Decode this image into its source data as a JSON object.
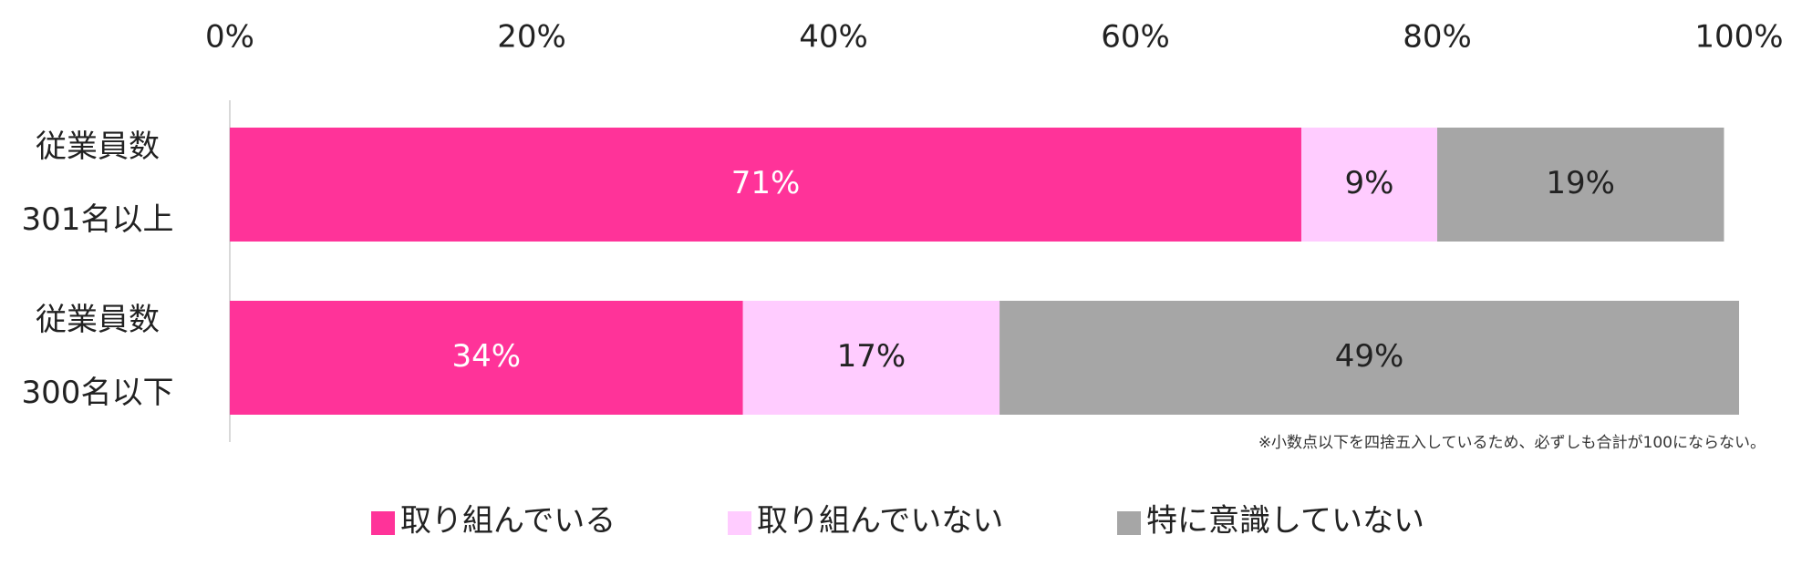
{
  "chart_data": {
    "type": "stacked_barh",
    "categories": [
      [
        "従業員数",
        "301名以上"
      ],
      [
        "従業員数",
        "300名以下"
      ]
    ],
    "series": [
      {
        "name": "取り組んでいる",
        "color": "#ff3399",
        "values": [
          71,
          34
        ],
        "value_labels": [
          "71%",
          "34%"
        ]
      },
      {
        "name": "取り組んでいない",
        "color": "#ffccff",
        "values": [
          9,
          17
        ],
        "value_labels": [
          "9%",
          "17%"
        ]
      },
      {
        "name": "特に意識していない",
        "color": "#a6a6a6",
        "values": [
          19,
          49
        ],
        "value_labels": [
          "19%",
          "49%"
        ]
      }
    ],
    "xlim": [
      0,
      100
    ],
    "xticks": [
      {
        "value": 0,
        "label": "0%"
      },
      {
        "value": 20,
        "label": "20%"
      },
      {
        "value": 40,
        "label": "40%"
      },
      {
        "value": 60,
        "label": "60%"
      },
      {
        "value": 80,
        "label": "80%"
      },
      {
        "value": 100,
        "label": "100%"
      }
    ],
    "note": "※小数点以下を四捨五入しているため、必ずしも合計が100にならない。",
    "legend": "bottom"
  }
}
